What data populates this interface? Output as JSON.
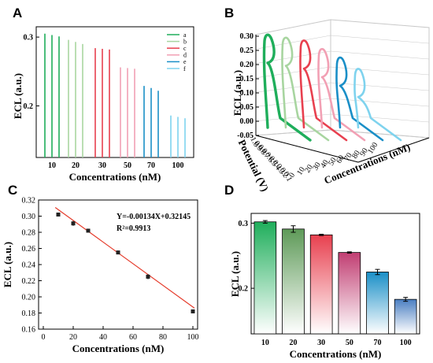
{
  "panels": {
    "a": "A",
    "b": "B",
    "c": "C",
    "d": "D"
  },
  "colors": {
    "a": "#1fae5b",
    "b": "#a8d5a0",
    "c": "#e8404f",
    "d": "#f2a0b4",
    "e": "#1a8fc7",
    "f": "#7fd3ee"
  },
  "chart_data": [
    {
      "id": "A",
      "type": "line",
      "xlabel": "Concentrations (nM)",
      "ylabel": "ECL (a.u.)",
      "categories": [
        "10",
        "20",
        "30",
        "50",
        "70",
        "100"
      ],
      "yticks": [
        "0.2",
        "0.3"
      ],
      "ylim": [
        0.125,
        0.315
      ],
      "legend": [
        "a",
        "b",
        "c",
        "d",
        "e",
        "f"
      ],
      "legend_position": "top-right",
      "series": [
        {
          "name": "a",
          "peaks": [
            0.305,
            0.303,
            0.301
          ]
        },
        {
          "name": "b",
          "peaks": [
            0.296,
            0.293,
            0.29
          ]
        },
        {
          "name": "c",
          "peaks": [
            0.284,
            0.283,
            0.282
          ]
        },
        {
          "name": "d",
          "peaks": [
            0.256,
            0.255,
            0.254
          ]
        },
        {
          "name": "e",
          "peaks": [
            0.229,
            0.226,
            0.222
          ]
        },
        {
          "name": "f",
          "peaks": [
            0.186,
            0.184,
            0.182
          ]
        }
      ]
    },
    {
      "id": "B",
      "type": "line",
      "ylabel": "ECL (a.u.)",
      "xlabel": "Potential (V)",
      "zlabel": "Concentrations (nM)",
      "yticks": [
        "0.30",
        "0.25",
        "0.20",
        "0.15",
        "0.10",
        "0.05",
        "0.00",
        "-0.05"
      ],
      "ylim": [
        -0.05,
        0.3
      ],
      "xticks": [
        "1.0",
        "0.9",
        "0.8",
        "0.7",
        "0.6",
        "0.5",
        "0.4",
        "0.3",
        "0.2",
        "0.1"
      ],
      "zticks": [
        "0",
        "10",
        "20",
        "30",
        "40",
        "50",
        "60",
        "70",
        "80",
        "90",
        "100"
      ],
      "series": [
        {
          "name": "10 nM",
          "peak": 0.3
        },
        {
          "name": "20 nM",
          "peak": 0.29
        },
        {
          "name": "30 nM",
          "peak": 0.28
        },
        {
          "name": "50 nM",
          "peak": 0.25
        },
        {
          "name": "70 nM",
          "peak": 0.22
        },
        {
          "name": "100 nM",
          "peak": 0.18
        }
      ]
    },
    {
      "id": "C",
      "type": "scatter",
      "xlabel": "Concentrations (nM)",
      "ylabel": "ECL (a.u.)",
      "xlim": [
        0,
        100
      ],
      "ylim": [
        0.16,
        0.32
      ],
      "xticks": [
        "0",
        "20",
        "40",
        "60",
        "80",
        "100"
      ],
      "yticks": [
        "0.16",
        "0.18",
        "0.20",
        "0.22",
        "0.24",
        "0.26",
        "0.28",
        "0.30",
        "0.32"
      ],
      "points": [
        {
          "x": 10,
          "y": 0.302,
          "err": 0.002
        },
        {
          "x": 20,
          "y": 0.291,
          "err": 0.003
        },
        {
          "x": 30,
          "y": 0.282,
          "err": 0.001
        },
        {
          "x": 50,
          "y": 0.255,
          "err": 0.001
        },
        {
          "x": 70,
          "y": 0.225,
          "err": 0.003
        },
        {
          "x": 100,
          "y": 0.182,
          "err": 0.002
        }
      ],
      "fit": {
        "slope": -0.00134,
        "intercept": 0.32145
      },
      "equation": "Y=-0.00134X+0.32145",
      "r2": "R²=0.9913"
    },
    {
      "id": "D",
      "type": "bar",
      "xlabel": "Concentrations (nM)",
      "ylabel": "ECL (a.u.)",
      "categories": [
        "10",
        "20",
        "30",
        "50",
        "70",
        "100"
      ],
      "values": [
        0.302,
        0.291,
        0.282,
        0.255,
        0.225,
        0.183
      ],
      "errors": [
        0.002,
        0.005,
        0.001,
        0.001,
        0.004,
        0.003
      ],
      "ylim": [
        0.13,
        0.315
      ],
      "yticks": [
        "0.2",
        "0.3"
      ],
      "colors": [
        "#1fae5b",
        "#5e9a58",
        "#e8404f",
        "#c13e72",
        "#1a8fc7",
        "#4a7fc2"
      ]
    }
  ]
}
